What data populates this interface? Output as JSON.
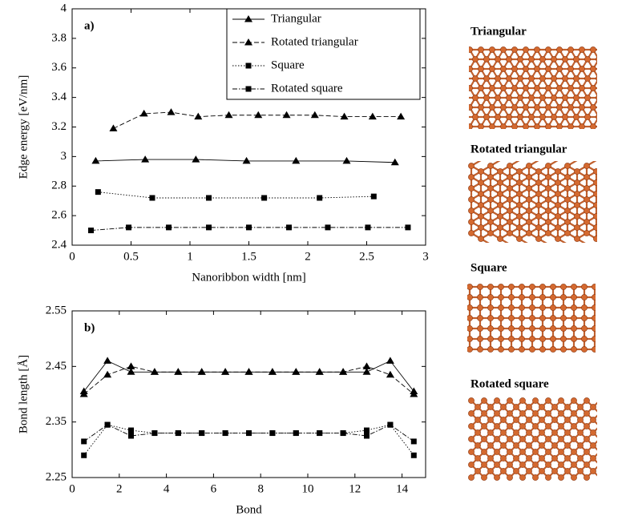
{
  "chart_data": [
    {
      "type": "line",
      "annotation": "a)",
      "xlabel": "Nanoribbon width [nm]",
      "ylabel": "Edge energy [eV/nm]",
      "xlim": [
        0,
        3
      ],
      "ylim": [
        2.4,
        4
      ],
      "xticks": [
        0,
        0.5,
        1,
        1.5,
        2,
        2.5,
        3
      ],
      "yticks": [
        2.4,
        2.6,
        2.8,
        3,
        3.2,
        3.4,
        3.6,
        3.8,
        4
      ],
      "legend": "upper right",
      "series": [
        {
          "name": "Triangular",
          "color": "#000000",
          "line_style": "solid",
          "marker": "triangle",
          "x": [
            0.2,
            0.62,
            1.05,
            1.48,
            1.9,
            2.33,
            2.74
          ],
          "values": [
            2.97,
            2.98,
            2.98,
            2.97,
            2.97,
            2.97,
            2.96
          ]
        },
        {
          "name": "Rotated triangular",
          "color": "#000000",
          "line_style": "dashed",
          "marker": "triangle",
          "x": [
            0.35,
            0.61,
            0.84,
            1.07,
            1.33,
            1.58,
            1.82,
            2.06,
            2.31,
            2.55,
            2.79
          ],
          "values": [
            3.19,
            3.29,
            3.3,
            3.27,
            3.28,
            3.28,
            3.28,
            3.28,
            3.27,
            3.27,
            3.27
          ]
        },
        {
          "name": "Square",
          "color": "#000000",
          "line_style": "dotted",
          "marker": "square",
          "x": [
            0.22,
            0.68,
            1.16,
            1.63,
            2.1,
            2.56
          ],
          "values": [
            2.76,
            2.72,
            2.72,
            2.72,
            2.72,
            2.73
          ]
        },
        {
          "name": "Rotated square",
          "color": "#000000",
          "line_style": "dashdot",
          "marker": "square",
          "x": [
            0.16,
            0.48,
            0.82,
            1.16,
            1.5,
            1.84,
            2.17,
            2.51,
            2.85
          ],
          "values": [
            2.5,
            2.52,
            2.52,
            2.52,
            2.52,
            2.52,
            2.52,
            2.52,
            2.52
          ]
        }
      ]
    },
    {
      "type": "line",
      "annotation": "b)",
      "xlabel": "Bond",
      "ylabel": "Bond length [Å]",
      "xlim": [
        0,
        15
      ],
      "ylim": [
        2.25,
        2.55
      ],
      "xticks": [
        0,
        2,
        4,
        6,
        8,
        10,
        12,
        14
      ],
      "yticks": [
        2.25,
        2.35,
        2.45,
        2.55
      ],
      "x": [
        0.5,
        1.5,
        2.5,
        3.5,
        4.5,
        5.5,
        6.5,
        7.5,
        8.5,
        9.5,
        10.5,
        11.5,
        12.5,
        13.5,
        14.5
      ],
      "series": [
        {
          "color": "#000000",
          "line_style": "solid",
          "marker": "triangle",
          "values": [
            2.405,
            2.46,
            2.44,
            2.44,
            2.44,
            2.44,
            2.44,
            2.44,
            2.44,
            2.44,
            2.44,
            2.44,
            2.44,
            2.46,
            2.405
          ]
        },
        {
          "color": "#000000",
          "line_style": "dashed",
          "marker": "triangle",
          "values": [
            2.4,
            2.435,
            2.45,
            2.44,
            2.44,
            2.44,
            2.44,
            2.44,
            2.44,
            2.44,
            2.44,
            2.44,
            2.45,
            2.435,
            2.4
          ]
        },
        {
          "color": "#000000",
          "line_style": "dotted",
          "marker": "square",
          "values": [
            2.29,
            2.345,
            2.335,
            2.33,
            2.33,
            2.33,
            2.33,
            2.33,
            2.33,
            2.33,
            2.33,
            2.33,
            2.335,
            2.345,
            2.29
          ]
        },
        {
          "color": "#000000",
          "line_style": "dashdot",
          "marker": "square",
          "values": [
            2.315,
            2.345,
            2.325,
            2.33,
            2.33,
            2.33,
            2.33,
            2.33,
            2.33,
            2.33,
            2.33,
            2.33,
            2.325,
            2.345,
            2.315
          ]
        }
      ]
    }
  ],
  "structures": [
    "Triangular",
    "Rotated triangular",
    "Square",
    "Rotated square"
  ]
}
